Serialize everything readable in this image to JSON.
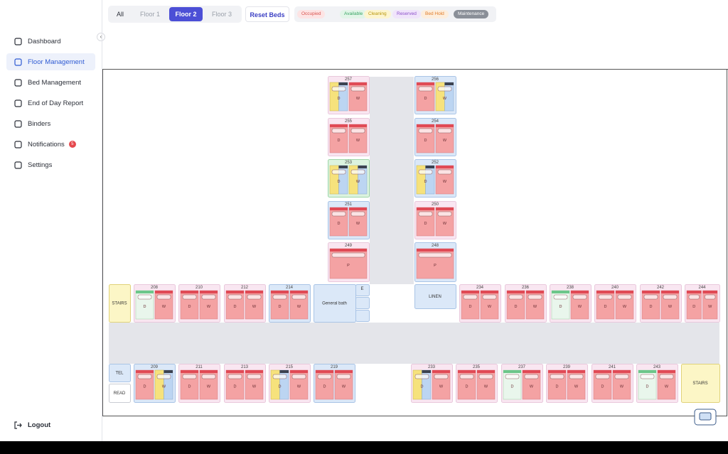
{
  "sidebar": {
    "items": [
      "Dashboard",
      "Floor Management",
      "Bed Management",
      "End of Day Report",
      "Binders",
      "Notifications",
      "Settings"
    ],
    "active": 1,
    "notification_badge": "5",
    "logout": "Logout"
  },
  "tabs": {
    "floors": [
      "All",
      "Floor 1",
      "Floor 2",
      "Floor 3"
    ],
    "active": 2,
    "reset": "Reset Beds"
  },
  "legend": [
    {
      "label": "Occupied",
      "color": "#d9534f",
      "bg": "#fde4e4"
    },
    {
      "label": "Available",
      "color": "#3aa565",
      "bg": "#e2f5e8"
    },
    {
      "label": "Cleaning",
      "color": "#b8960c",
      "bg": "#fdf5cf"
    },
    {
      "label": "Reserved",
      "color": "#8b4fc9",
      "bg": "#f0e4fb"
    },
    {
      "label": "Bed Hold",
      "color": "#e07b28",
      "bg": "#fdeedd"
    },
    {
      "label": "Maintenance",
      "color": "#ffffff",
      "bg": "#8a8f98"
    }
  ],
  "floor_plan": {
    "rooms": [
      {
        "number": "257",
        "bg": "pink",
        "beds": [
          {
            "label": "D",
            "status": "split"
          },
          {
            "label": "W",
            "status": "occupied"
          }
        ]
      },
      {
        "number": "256",
        "bg": "blue",
        "beds": [
          {
            "label": "D",
            "status": "occupied"
          },
          {
            "label": "W",
            "status": "split"
          }
        ]
      },
      {
        "number": "255",
        "bg": "pink",
        "beds": [
          {
            "label": "D",
            "status": "occupied"
          },
          {
            "label": "W",
            "status": "occupied"
          }
        ]
      },
      {
        "number": "254",
        "bg": "blue",
        "beds": [
          {
            "label": "D",
            "status": "occupied"
          },
          {
            "label": "W",
            "status": "occupied"
          }
        ]
      },
      {
        "number": "253",
        "bg": "green",
        "beds": [
          {
            "label": "D",
            "status": "split"
          },
          {
            "label": "W",
            "status": "split"
          }
        ]
      },
      {
        "number": "252",
        "bg": "blue",
        "beds": [
          {
            "label": "D",
            "status": "split"
          },
          {
            "label": "W",
            "status": "occupied"
          }
        ]
      },
      {
        "number": "251",
        "bg": "blue",
        "beds": [
          {
            "label": "D",
            "status": "occupied"
          },
          {
            "label": "W",
            "status": "occupied"
          }
        ]
      },
      {
        "number": "250",
        "bg": "pink",
        "beds": [
          {
            "label": "D",
            "status": "occupied"
          },
          {
            "label": "W",
            "status": "occupied"
          }
        ]
      },
      {
        "number": "249",
        "bg": "pink",
        "beds": [
          {
            "label": "P",
            "status": "occupied"
          }
        ]
      },
      {
        "number": "248",
        "bg": "blue",
        "beds": [
          {
            "label": "P",
            "status": "occupied"
          }
        ]
      },
      {
        "number": "208",
        "bg": "pink",
        "beds": [
          {
            "label": "D",
            "status": "available"
          },
          {
            "label": "W",
            "status": "occupied"
          }
        ]
      },
      {
        "number": "210",
        "bg": "pink",
        "beds": [
          {
            "label": "D",
            "status": "occupied"
          },
          {
            "label": "W",
            "status": "occupied"
          }
        ]
      },
      {
        "number": "212",
        "bg": "pink",
        "beds": [
          {
            "label": "D",
            "status": "occupied"
          },
          {
            "label": "W",
            "status": "occupied"
          }
        ]
      },
      {
        "number": "214",
        "bg": "blue",
        "beds": [
          {
            "label": "D",
            "status": "occupied"
          },
          {
            "label": "W",
            "status": "occupied"
          }
        ]
      },
      {
        "number": "234",
        "bg": "pink",
        "beds": [
          {
            "label": "D",
            "status": "occupied"
          },
          {
            "label": "W",
            "status": "occupied"
          }
        ]
      },
      {
        "number": "236",
        "bg": "pink",
        "beds": [
          {
            "label": "D",
            "status": "occupied"
          },
          {
            "label": "W",
            "status": "occupied"
          }
        ]
      },
      {
        "number": "238",
        "bg": "pink",
        "beds": [
          {
            "label": "D",
            "status": "available"
          },
          {
            "label": "W",
            "status": "occupied"
          }
        ]
      },
      {
        "number": "240",
        "bg": "pink",
        "beds": [
          {
            "label": "D",
            "status": "occupied"
          },
          {
            "label": "W",
            "status": "occupied"
          }
        ]
      },
      {
        "number": "242",
        "bg": "pink",
        "beds": [
          {
            "label": "D",
            "status": "occupied"
          },
          {
            "label": "W",
            "status": "occupied"
          }
        ]
      },
      {
        "number": "244",
        "bg": "pink",
        "beds": [
          {
            "label": "D",
            "status": "occupied"
          },
          {
            "label": "W",
            "status": "occupied"
          }
        ]
      },
      {
        "number": "209",
        "bg": "blue",
        "beds": [
          {
            "label": "D",
            "status": "occupied"
          },
          {
            "label": "W",
            "status": "split"
          }
        ]
      },
      {
        "number": "211",
        "bg": "pink",
        "beds": [
          {
            "label": "D",
            "status": "occupied"
          },
          {
            "label": "W",
            "status": "occupied"
          }
        ]
      },
      {
        "number": "213",
        "bg": "pink",
        "beds": [
          {
            "label": "D",
            "status": "occupied"
          },
          {
            "label": "W",
            "status": "occupied"
          }
        ]
      },
      {
        "number": "215",
        "bg": "pink",
        "beds": [
          {
            "label": "D",
            "status": "split"
          },
          {
            "label": "W",
            "status": "occupied"
          }
        ]
      },
      {
        "number": "219",
        "bg": "blue",
        "beds": [
          {
            "label": "D",
            "status": "occupied"
          },
          {
            "label": "W",
            "status": "occupied"
          }
        ]
      },
      {
        "number": "233",
        "bg": "pink",
        "beds": [
          {
            "label": "D",
            "status": "split"
          },
          {
            "label": "W",
            "status": "occupied"
          }
        ]
      },
      {
        "number": "235",
        "bg": "pink",
        "beds": [
          {
            "label": "D",
            "status": "occupied"
          },
          {
            "label": "W",
            "status": "occupied"
          }
        ]
      },
      {
        "number": "237",
        "bg": "pink",
        "beds": [
          {
            "label": "D",
            "status": "available"
          },
          {
            "label": "W",
            "status": "occupied"
          }
        ]
      },
      {
        "number": "239",
        "bg": "pink",
        "beds": [
          {
            "label": "D",
            "status": "occupied"
          },
          {
            "label": "W",
            "status": "occupied"
          }
        ]
      },
      {
        "number": "241",
        "bg": "pink",
        "beds": [
          {
            "label": "D",
            "status": "occupied"
          },
          {
            "label": "W",
            "status": "occupied"
          }
        ]
      },
      {
        "number": "243",
        "bg": "pink",
        "beds": [
          {
            "label": "D",
            "status": "available"
          },
          {
            "label": "W",
            "status": "occupied"
          }
        ]
      }
    ],
    "areas": [
      {
        "label": "STAIRS",
        "bg": "yellow"
      },
      {
        "label": "General bath",
        "bg": "blue"
      },
      {
        "label": "E",
        "bg": "blue"
      },
      {
        "label": "LINEN",
        "bg": "blue"
      },
      {
        "label": "TEL",
        "bg": "blue"
      },
      {
        "label": "READ",
        "bg": "white"
      },
      {
        "label": "STAIRS",
        "bg": "yellow"
      }
    ]
  }
}
